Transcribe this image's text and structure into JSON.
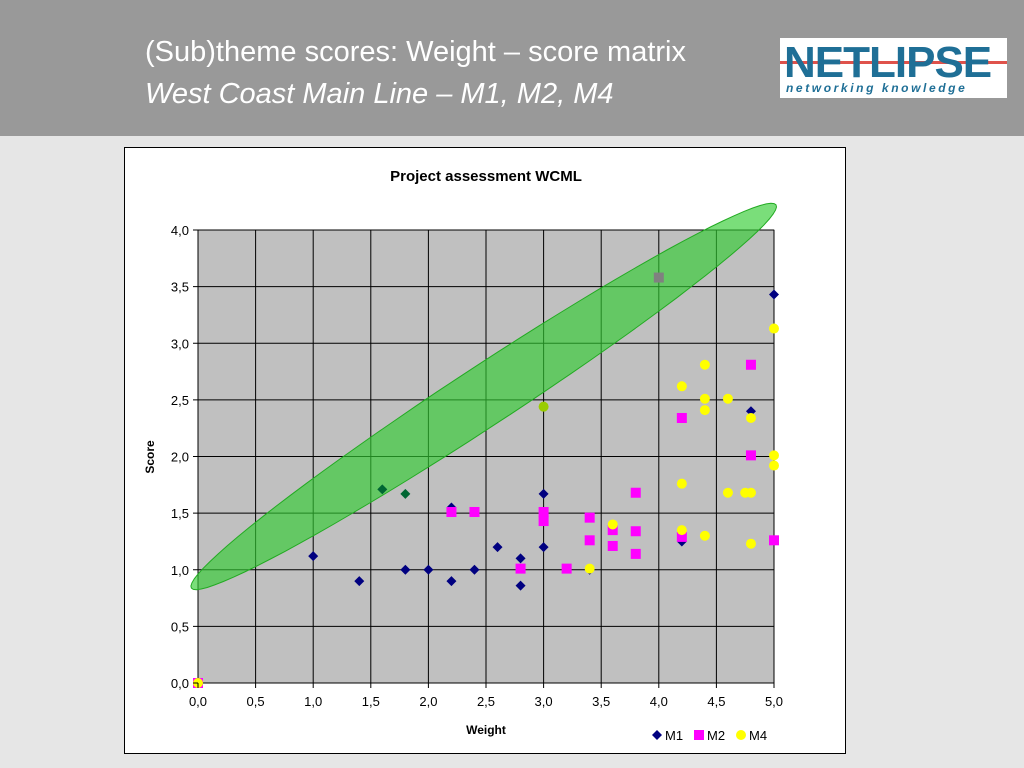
{
  "slide": {
    "title": "(Sub)theme scores: Weight – score matrix",
    "subtitle": "West Coast Main Line – M1, M2, M4",
    "logo_text": "NETLIPSE",
    "logo_tagline": "networking knowledge"
  },
  "colors": {
    "header_bg": "#999999",
    "plot_bg": "#c0c0c0",
    "m1": "#000080",
    "m2": "#ff00ff",
    "m4": "#ffff00",
    "ellipse": "#33cc33",
    "logo": "#1f6f96"
  },
  "chart_data": {
    "type": "scatter",
    "title": "Project assessment WCML",
    "xlabel": "Weight",
    "ylabel": "Score",
    "xlim": [
      0,
      5
    ],
    "ylim": [
      0,
      4
    ],
    "x_ticks": [
      "0,0",
      "0,5",
      "1,0",
      "1,5",
      "2,0",
      "2,5",
      "3,0",
      "3,5",
      "4,0",
      "4,5",
      "5,0"
    ],
    "y_ticks": [
      "0,0",
      "0,5",
      "1,0",
      "1,5",
      "2,0",
      "2,5",
      "3,0",
      "3,5",
      "4,0"
    ],
    "grid": true,
    "legend_position": "bottom-right",
    "series": [
      {
        "name": "M1",
        "marker": "diamond",
        "points": [
          [
            0,
            0
          ],
          [
            1.0,
            1.12
          ],
          [
            1.4,
            0.9
          ],
          [
            1.8,
            1.0
          ],
          [
            2.0,
            1.0
          ],
          [
            2.2,
            0.9
          ],
          [
            2.2,
            1.55
          ],
          [
            2.4,
            1.0
          ],
          [
            2.6,
            1.2
          ],
          [
            2.8,
            1.1
          ],
          [
            2.8,
            0.86
          ],
          [
            3.0,
            1.2
          ],
          [
            3.0,
            1.67
          ],
          [
            3.4,
            1.0
          ],
          [
            4.2,
            1.25
          ],
          [
            4.8,
            2.4
          ],
          [
            5.0,
            3.43
          ]
        ]
      },
      {
        "name": "M2",
        "marker": "square",
        "points": [
          [
            0,
            0
          ],
          [
            2.2,
            1.51
          ],
          [
            2.4,
            1.51
          ],
          [
            2.8,
            1.01
          ],
          [
            3.0,
            1.51
          ],
          [
            3.0,
            1.43
          ],
          [
            3.2,
            1.01
          ],
          [
            3.4,
            1.46
          ],
          [
            3.4,
            1.26
          ],
          [
            3.6,
            1.35
          ],
          [
            3.6,
            1.21
          ],
          [
            3.8,
            1.68
          ],
          [
            3.8,
            1.34
          ],
          [
            3.8,
            1.14
          ],
          [
            4.2,
            2.34
          ],
          [
            4.2,
            1.29
          ],
          [
            4.8,
            2.81
          ],
          [
            4.8,
            2.01
          ],
          [
            5.0,
            1.26
          ]
        ]
      },
      {
        "name": "M4",
        "marker": "circle",
        "points": [
          [
            0,
            0
          ],
          [
            3.4,
            1.01
          ],
          [
            3.6,
            1.4
          ],
          [
            4.2,
            2.62
          ],
          [
            4.2,
            1.76
          ],
          [
            4.2,
            1.35
          ],
          [
            4.4,
            2.81
          ],
          [
            4.4,
            2.51
          ],
          [
            4.4,
            2.41
          ],
          [
            4.4,
            1.3
          ],
          [
            4.6,
            2.51
          ],
          [
            4.6,
            1.68
          ],
          [
            4.75,
            1.68
          ],
          [
            4.8,
            1.68
          ],
          [
            4.8,
            2.34
          ],
          [
            4.8,
            1.23
          ],
          [
            5.0,
            3.13
          ],
          [
            5.0,
            2.01
          ],
          [
            5.0,
            1.92
          ]
        ]
      }
    ],
    "highlighted_points": [
      {
        "marker": "diamond",
        "color": "#006633",
        "points": [
          [
            1.6,
            1.71
          ],
          [
            1.8,
            1.67
          ]
        ]
      },
      {
        "marker": "square",
        "color": "#808080",
        "points": [
          [
            4.0,
            3.58
          ]
        ]
      },
      {
        "marker": "circle",
        "color": "#99cc00",
        "points": [
          [
            3.0,
            2.44
          ]
        ]
      }
    ],
    "annotation_ellipse": {
      "center": [
        2.48,
        2.53
      ],
      "semi_axis_major": 3.05,
      "semi_axis_minor": 0.26,
      "angle_deg": 33.7
    }
  }
}
